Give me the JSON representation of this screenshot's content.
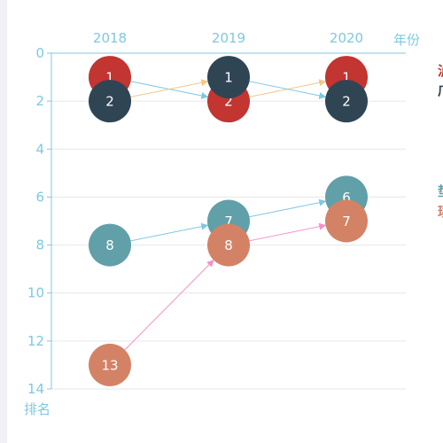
{
  "chart_data": {
    "type": "scatter",
    "x_axis": {
      "name": "年份",
      "categories": [
        "2018",
        "2019",
        "2020"
      ],
      "position": "top"
    },
    "y_axis": {
      "name": "排名",
      "inverse": true,
      "range": [
        0,
        14
      ],
      "ticks": [
        0,
        2,
        4,
        6,
        8,
        10,
        12,
        14
      ]
    },
    "grid": true,
    "series": [
      {
        "color": "#c23531",
        "points": [
          {
            "x": "2018",
            "rank": 1
          },
          {
            "x": "2019",
            "rank": 2
          },
          {
            "x": "2020",
            "rank": 1
          }
        ]
      },
      {
        "color": "#2f4554",
        "points": [
          {
            "x": "2018",
            "rank": 2
          },
          {
            "x": "2019",
            "rank": 1
          },
          {
            "x": "2020",
            "rank": 2
          }
        ]
      },
      {
        "color": "#61a0a8",
        "points": [
          {
            "x": "2018",
            "rank": 8
          },
          {
            "x": "2019",
            "rank": 7
          },
          {
            "x": "2020",
            "rank": 6
          }
        ]
      },
      {
        "color": "#d48265",
        "points": [
          {
            "x": "2018",
            "rank": 13
          },
          {
            "x": "2019",
            "rank": 8
          },
          {
            "x": "2020",
            "rank": 7
          }
        ]
      }
    ],
    "links": [
      {
        "from": [
          0,
          0
        ],
        "to": [
          1,
          0
        ],
        "color": "#7fc8e0"
      },
      {
        "from": [
          1,
          0
        ],
        "to": [
          2,
          0
        ],
        "color": "#f0c987"
      },
      {
        "from": [
          0,
          1
        ],
        "to": [
          1,
          1
        ],
        "color": "#f0c987"
      },
      {
        "from": [
          1,
          1
        ],
        "to": [
          2,
          1
        ],
        "color": "#7fc8e0"
      },
      {
        "from": [
          0,
          2
        ],
        "to": [
          1,
          2
        ],
        "color": "#7fc8e0"
      },
      {
        "from": [
          1,
          2
        ],
        "to": [
          2,
          2
        ],
        "color": "#7fc8e0"
      },
      {
        "from": [
          0,
          3
        ],
        "to": [
          1,
          3
        ],
        "color": "#f590c8"
      },
      {
        "from": [
          1,
          3
        ],
        "to": [
          2,
          3
        ],
        "color": "#f590c8"
      }
    ],
    "draw_order": [
      [
        0,
        0
      ],
      [
        0,
        1
      ],
      [
        0,
        2
      ],
      [
        0,
        3
      ],
      [
        1,
        0
      ],
      [
        1,
        1
      ],
      [
        1,
        2
      ],
      [
        1,
        3
      ],
      [
        2,
        0
      ],
      [
        2,
        1
      ],
      [
        2,
        2
      ],
      [
        2,
        3
      ]
    ],
    "legend": {
      "placement": "right (cut off)",
      "fragments": [
        {
          "text": "泸",
          "color": "#c23531"
        },
        {
          "text": "广",
          "color": "#2f4554"
        },
        {
          "text": "垫",
          "color": "#61a0a8"
        },
        {
          "text": "珙",
          "color": "#d48265"
        }
      ]
    },
    "colors": {
      "axis": "#7fc8e0",
      "grid": "#e6e6e6",
      "label": "#ffffff"
    }
  }
}
